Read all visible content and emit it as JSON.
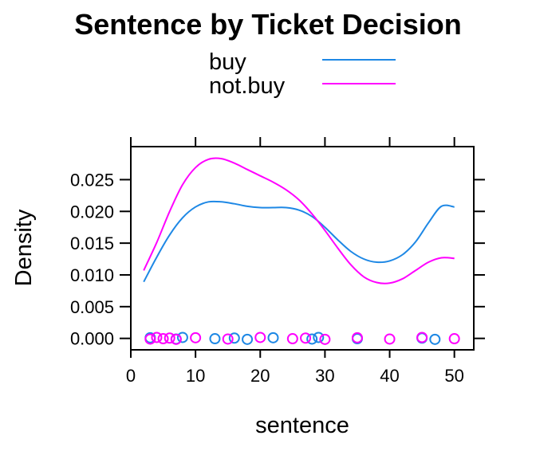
{
  "chart_data": {
    "type": "line",
    "title": "Sentence by Ticket Decision",
    "xlabel": "sentence",
    "ylabel": "Density",
    "xlim": [
      0,
      53
    ],
    "ylim": [
      -0.0018,
      0.0302
    ],
    "xticks": [
      0,
      10,
      20,
      30,
      40,
      50
    ],
    "xtick_labels": [
      "0",
      "10",
      "20",
      "30",
      "40",
      "50"
    ],
    "yticks": [
      0.0,
      0.005,
      0.01,
      0.015,
      0.02,
      0.025
    ],
    "ytick_labels": [
      "0.000",
      "0.005",
      "0.010",
      "0.015",
      "0.020",
      "0.025"
    ],
    "legend_position": "top",
    "grid": false,
    "series": [
      {
        "name": "buy",
        "color": "#1e88e5",
        "x": [
          2,
          4,
          6,
          8,
          10,
          12,
          14,
          16,
          18,
          20,
          22,
          24,
          26,
          28,
          30,
          32,
          34,
          36,
          38,
          40,
          42,
          44,
          46,
          48,
          50
        ],
        "y": [
          0.0089,
          0.0128,
          0.0163,
          0.019,
          0.0207,
          0.0215,
          0.0215,
          0.0212,
          0.0208,
          0.0206,
          0.0206,
          0.0206,
          0.0202,
          0.0192,
          0.0175,
          0.0155,
          0.0137,
          0.0125,
          0.012,
          0.0122,
          0.0132,
          0.0152,
          0.0182,
          0.0208,
          0.0207
        ],
        "rug": [
          3,
          7,
          8,
          13,
          16,
          18,
          22,
          28,
          29,
          35,
          45,
          47
        ]
      },
      {
        "name": "not.buy",
        "color": "#ff00ff",
        "x": [
          2,
          4,
          6,
          8,
          10,
          12,
          14,
          16,
          18,
          20,
          22,
          24,
          26,
          28,
          30,
          32,
          34,
          36,
          38,
          40,
          42,
          44,
          46,
          48,
          50
        ],
        "y": [
          0.0107,
          0.0151,
          0.02,
          0.0242,
          0.0269,
          0.0282,
          0.0283,
          0.0276,
          0.0266,
          0.0256,
          0.0246,
          0.0234,
          0.0218,
          0.0196,
          0.017,
          0.0142,
          0.0116,
          0.0097,
          0.0088,
          0.0087,
          0.0094,
          0.0107,
          0.012,
          0.0127,
          0.0126
        ],
        "rug": [
          3,
          4,
          5,
          6,
          7,
          10,
          15,
          20,
          25,
          27,
          30,
          35,
          40,
          45,
          50
        ]
      }
    ]
  }
}
